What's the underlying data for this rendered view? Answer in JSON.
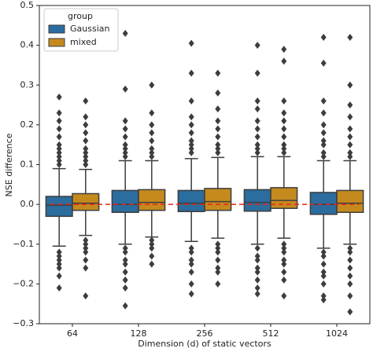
{
  "chart_data": {
    "type": "box",
    "xlabel": "Dimension (d) of static vectors",
    "ylabel": "NSE difference",
    "categories": [
      "64",
      "128",
      "256",
      "512",
      "1024"
    ],
    "legend_title": "group",
    "legend": "upper left",
    "reference_line": {
      "value": 0,
      "color": "#e8231b",
      "style": "dashed"
    },
    "series": [
      {
        "name": "Gaussian",
        "color": "#2a6d9e",
        "whislo": [
          -0.105,
          -0.1,
          -0.093,
          -0.1,
          -0.11
        ],
        "q1": [
          -0.03,
          -0.02,
          -0.018,
          -0.017,
          -0.025
        ],
        "med": [
          -0.002,
          0.0,
          0.003,
          0.005,
          0.0
        ],
        "q3": [
          0.02,
          0.035,
          0.035,
          0.037,
          0.03
        ],
        "whishi": [
          0.09,
          0.11,
          0.115,
          0.12,
          0.11
        ],
        "fliers": [
          [
            0.1,
            0.11,
            0.12,
            0.13,
            0.14,
            0.15,
            0.17,
            0.19,
            0.21,
            0.23,
            0.27,
            -0.12,
            -0.13,
            -0.14,
            -0.15,
            -0.16,
            -0.18,
            -0.21
          ],
          [
            0.12,
            0.13,
            0.14,
            0.15,
            0.17,
            0.19,
            0.21,
            0.29,
            0.43,
            -0.11,
            -0.12,
            -0.14,
            -0.15,
            -0.17,
            -0.19,
            -0.21,
            -0.255
          ],
          [
            0.13,
            0.14,
            0.15,
            0.16,
            0.18,
            0.2,
            0.22,
            0.26,
            0.33,
            0.405,
            -0.11,
            -0.12,
            -0.14,
            -0.15,
            -0.17,
            -0.2,
            -0.225
          ],
          [
            0.13,
            0.14,
            0.15,
            0.17,
            0.19,
            0.21,
            0.24,
            0.26,
            0.33,
            0.4,
            -0.11,
            -0.13,
            -0.14,
            -0.16,
            -0.17,
            -0.19,
            -0.21,
            -0.225
          ],
          [
            0.12,
            0.13,
            0.15,
            0.16,
            0.18,
            0.2,
            0.23,
            0.26,
            0.355,
            0.42,
            -0.12,
            -0.13,
            -0.15,
            -0.17,
            -0.18,
            -0.2,
            -0.23,
            -0.24
          ]
        ]
      },
      {
        "name": "mixed",
        "color": "#c58a1e",
        "whislo": [
          -0.078,
          -0.082,
          -0.085,
          -0.085,
          -0.1
        ],
        "q1": [
          -0.015,
          -0.015,
          -0.015,
          -0.01,
          -0.02
        ],
        "med": [
          0.003,
          0.005,
          0.007,
          0.01,
          0.003
        ],
        "q3": [
          0.027,
          0.037,
          0.04,
          0.042,
          0.035
        ],
        "whishi": [
          0.088,
          0.11,
          0.118,
          0.12,
          0.11
        ],
        "fliers": [
          [
            0.1,
            0.11,
            0.12,
            0.13,
            0.14,
            0.16,
            0.18,
            0.2,
            0.22,
            0.26,
            -0.09,
            -0.1,
            -0.11,
            -0.12,
            -0.14,
            -0.16,
            -0.23
          ],
          [
            0.12,
            0.13,
            0.14,
            0.16,
            0.18,
            0.2,
            0.23,
            0.3,
            -0.09,
            -0.1,
            -0.11,
            -0.13,
            -0.15
          ],
          [
            0.13,
            0.14,
            0.15,
            0.17,
            0.19,
            0.21,
            0.24,
            0.28,
            0.33,
            -0.1,
            -0.11,
            -0.12,
            -0.14,
            -0.16,
            -0.17,
            -0.2
          ],
          [
            0.13,
            0.14,
            0.15,
            0.17,
            0.19,
            0.21,
            0.23,
            0.26,
            0.36,
            0.39,
            -0.1,
            -0.11,
            -0.12,
            -0.14,
            -0.15,
            -0.17,
            -0.19,
            -0.23
          ],
          [
            0.12,
            0.13,
            0.15,
            0.17,
            0.19,
            0.22,
            0.25,
            0.3,
            0.42,
            -0.11,
            -0.12,
            -0.14,
            -0.16,
            -0.18,
            -0.2,
            -0.23,
            -0.27
          ]
        ]
      }
    ],
    "ylim": [
      -0.3,
      0.5
    ],
    "yticks": [
      {
        "value": -0.3,
        "label": "−0.3"
      },
      {
        "value": -0.2,
        "label": "−0.2"
      },
      {
        "value": -0.1,
        "label": "−0.1"
      },
      {
        "value": 0,
        "label": "0.0"
      },
      0.1,
      0.2,
      0.3,
      0.4,
      0.5
    ]
  }
}
